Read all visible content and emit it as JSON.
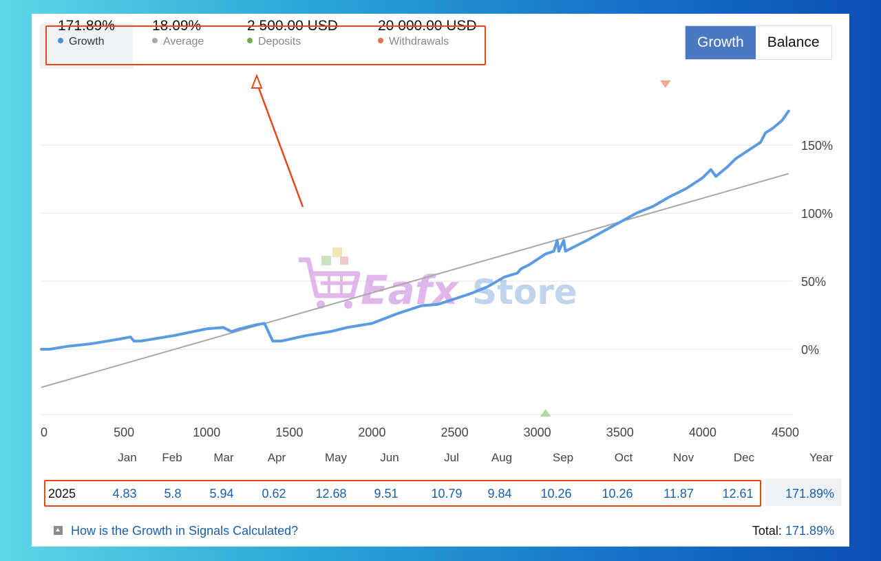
{
  "stats": [
    {
      "value": "171.89%",
      "label": "Growth",
      "color": "#4a90d9"
    },
    {
      "value": "18.09%",
      "label": "Average",
      "color": "#a8a8a8"
    },
    {
      "value": "2 500.00 USD",
      "label": "Deposits",
      "color": "#6ab04c"
    },
    {
      "value": "20 000.00 USD",
      "label": "Withdrawals",
      "color": "#e07050"
    }
  ],
  "toggle": {
    "growth": "Growth",
    "balance": "Balance"
  },
  "watermark": {
    "text_a": "Eafx",
    "text_b": "Store"
  },
  "chart_data": {
    "type": "line",
    "xlim": [
      0,
      4500
    ],
    "ylim": [
      -48,
      200
    ],
    "x_ticks": [
      0,
      500,
      1000,
      1500,
      2000,
      2500,
      3000,
      3500,
      4000,
      4500
    ],
    "y_ticks": [
      0,
      50,
      100,
      150
    ],
    "y_tick_labels": [
      "0%",
      "50%",
      "100%",
      "150%"
    ],
    "grid": true,
    "series": [
      {
        "name": "Growth",
        "color": "#5b9be3",
        "points": [
          [
            0,
            0
          ],
          [
            50,
            0
          ],
          [
            150,
            2
          ],
          [
            300,
            4
          ],
          [
            450,
            7
          ],
          [
            540,
            9
          ],
          [
            560,
            6
          ],
          [
            600,
            6
          ],
          [
            800,
            10
          ],
          [
            1000,
            15
          ],
          [
            1100,
            16
          ],
          [
            1150,
            13
          ],
          [
            1200,
            15
          ],
          [
            1300,
            18
          ],
          [
            1350,
            19
          ],
          [
            1400,
            6
          ],
          [
            1450,
            6
          ],
          [
            1600,
            10
          ],
          [
            1750,
            13
          ],
          [
            1850,
            16
          ],
          [
            2000,
            19
          ],
          [
            2150,
            26
          ],
          [
            2300,
            32
          ],
          [
            2400,
            33
          ],
          [
            2500,
            37
          ],
          [
            2600,
            41
          ],
          [
            2700,
            46
          ],
          [
            2800,
            53
          ],
          [
            2880,
            56
          ],
          [
            2900,
            59
          ],
          [
            2950,
            62
          ],
          [
            3000,
            66
          ],
          [
            3050,
            70
          ],
          [
            3100,
            72
          ],
          [
            3120,
            80
          ],
          [
            3130,
            72
          ],
          [
            3160,
            80
          ],
          [
            3170,
            72
          ],
          [
            3300,
            80
          ],
          [
            3450,
            90
          ],
          [
            3600,
            100
          ],
          [
            3700,
            105
          ],
          [
            3800,
            112
          ],
          [
            3900,
            118
          ],
          [
            4000,
            126
          ],
          [
            4050,
            132
          ],
          [
            4080,
            127
          ],
          [
            4150,
            134
          ],
          [
            4200,
            140
          ],
          [
            4250,
            144
          ],
          [
            4300,
            148
          ],
          [
            4350,
            152
          ],
          [
            4380,
            159
          ],
          [
            4420,
            162
          ],
          [
            4480,
            168
          ],
          [
            4520,
            175
          ]
        ]
      },
      {
        "name": "Average",
        "color": "#a8a8a8",
        "points": [
          [
            0,
            -28
          ],
          [
            4520,
            129
          ]
        ]
      }
    ],
    "markers": [
      {
        "type": "withdrawal",
        "x": 3775,
        "y": 195,
        "color": "#f4a89a"
      },
      {
        "type": "deposit",
        "x": 3050,
        "y": -47,
        "color": "#b6dba2"
      }
    ]
  },
  "months": [
    "Jan",
    "Feb",
    "Mar",
    "Apr",
    "May",
    "Jun",
    "Jul",
    "Aug",
    "Sep",
    "Oct",
    "Nov",
    "Dec"
  ],
  "year_header": "Year",
  "year_row": {
    "year": "2025",
    "values": [
      "4.83",
      "5.8",
      "5.94",
      "0.62",
      "12.68",
      "9.51",
      "10.79",
      "9.84",
      "10.26",
      "10.26",
      "11.87",
      "12.61"
    ],
    "total": "171.89%"
  },
  "footer": {
    "link": "How is the Growth in Signals Calculated?",
    "total_label": "Total:",
    "total_value": "171.89%"
  }
}
